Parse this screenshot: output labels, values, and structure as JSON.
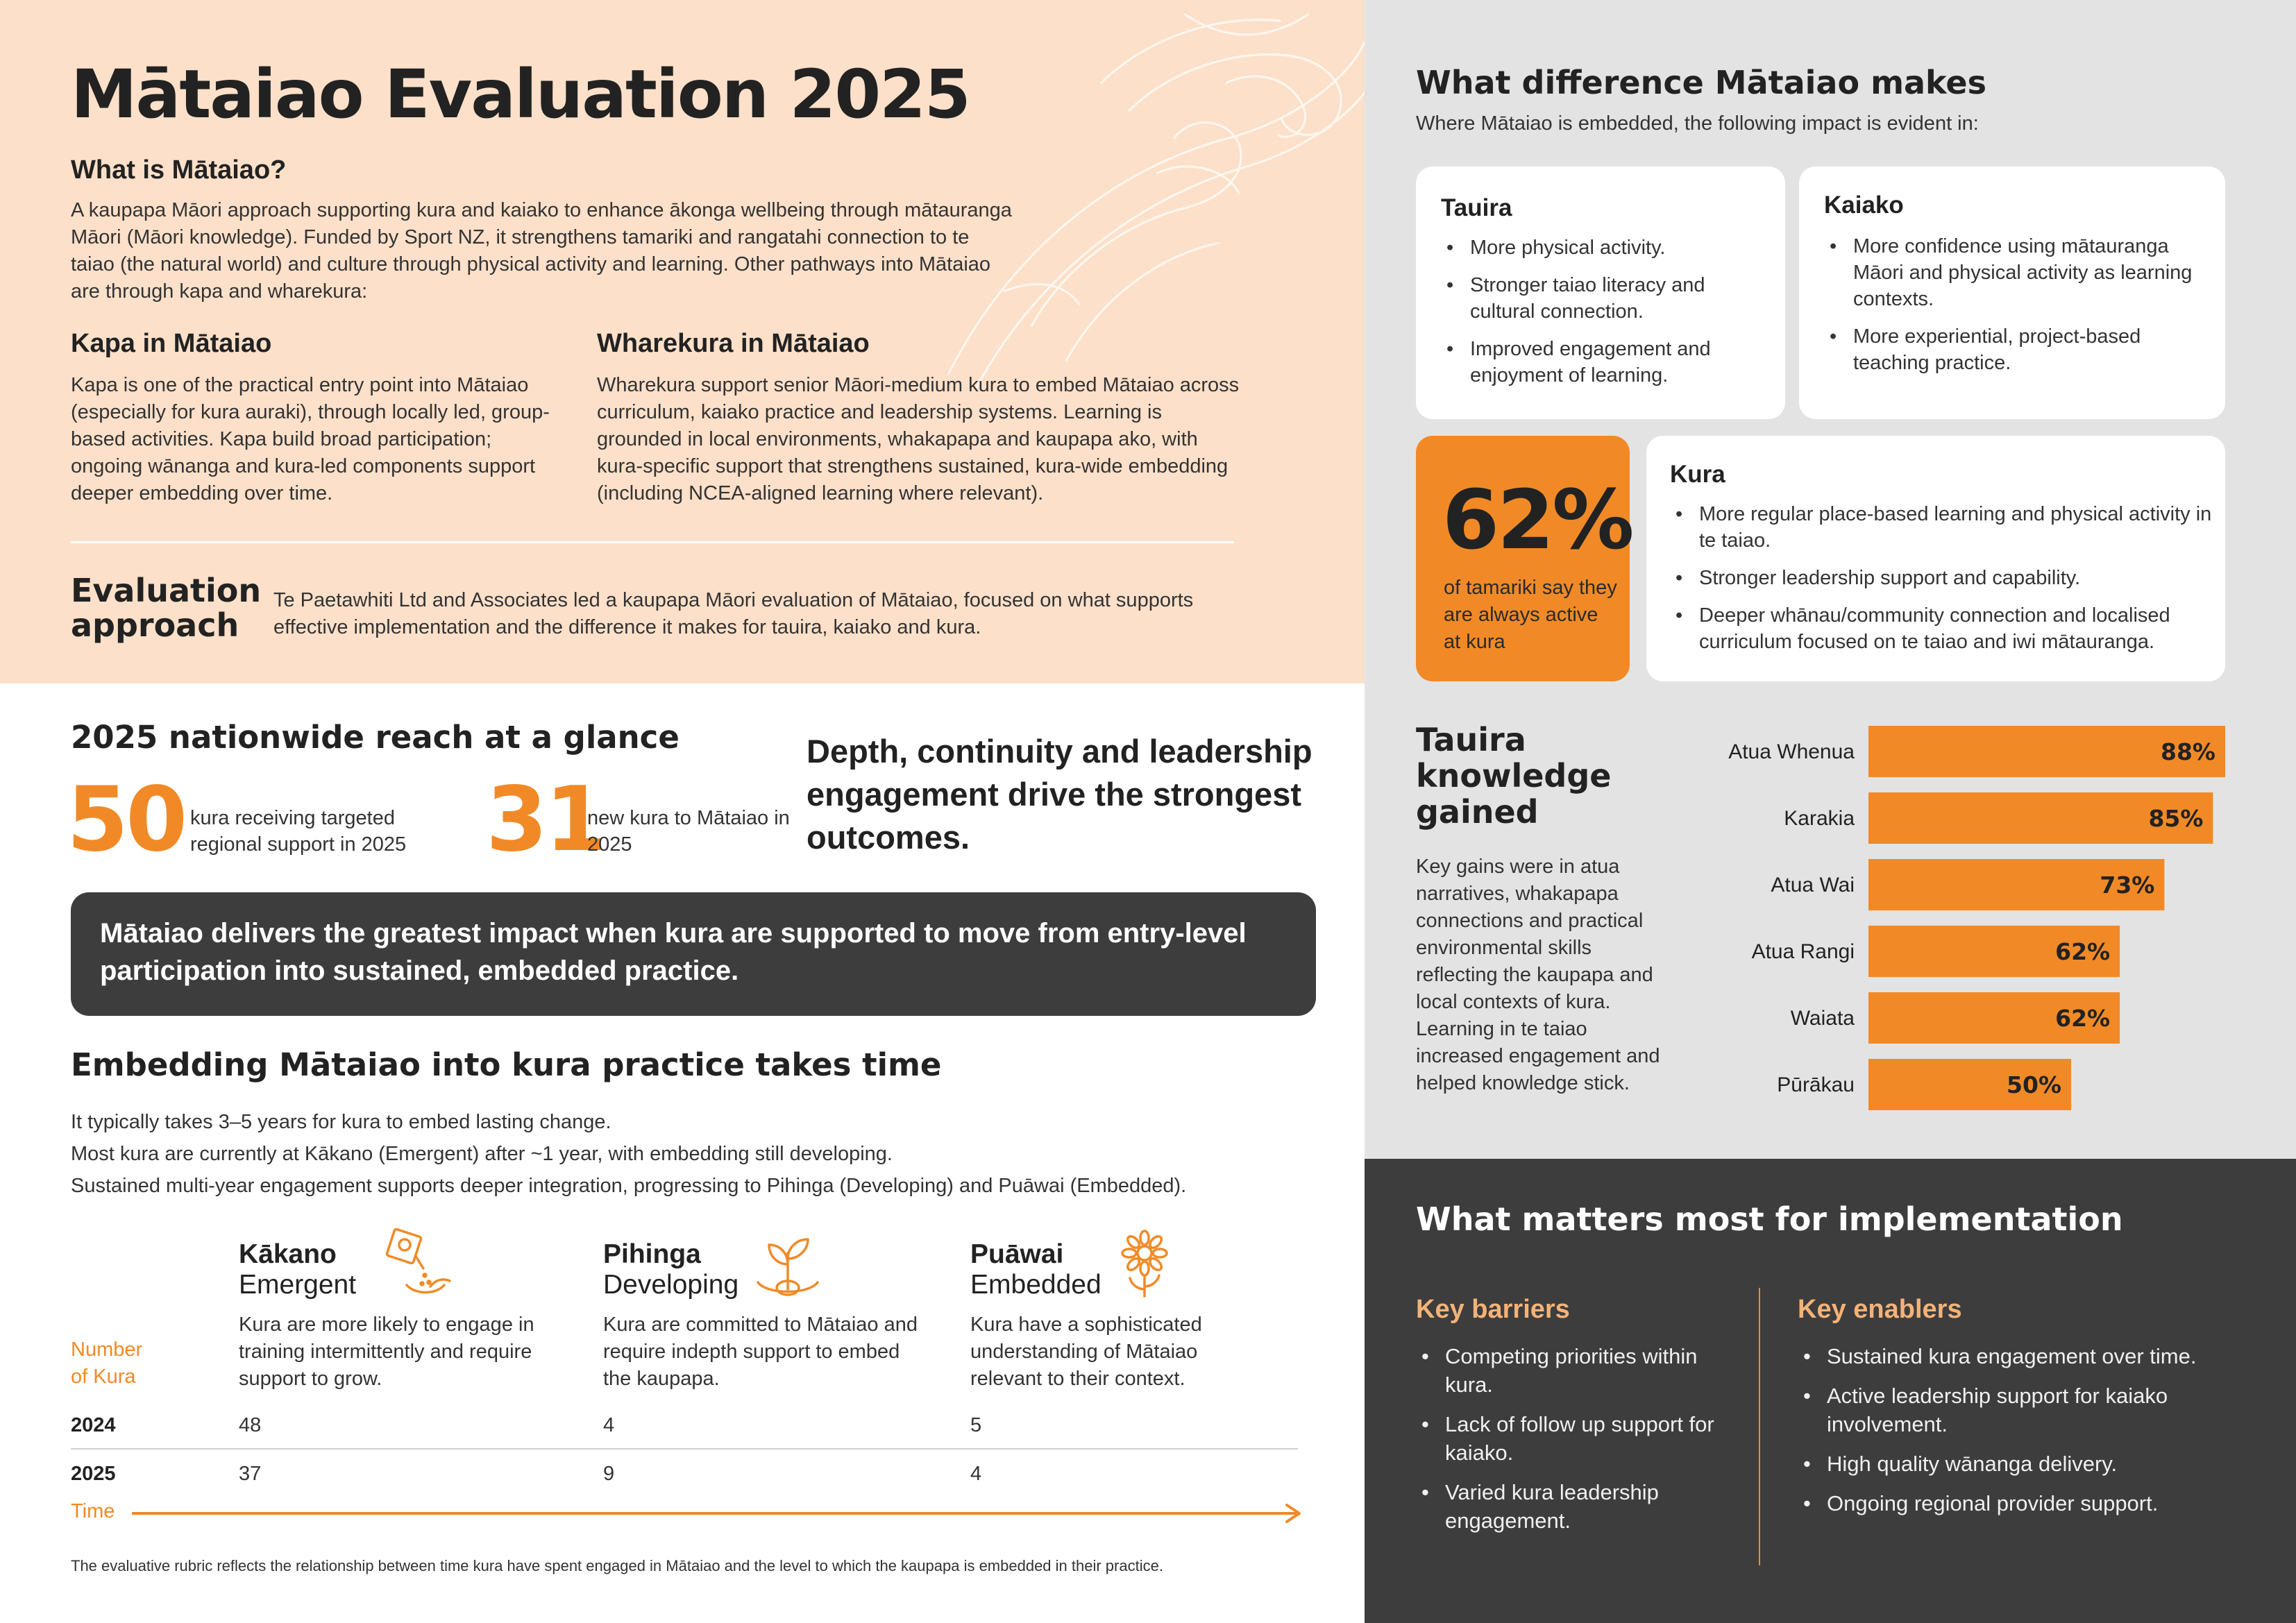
{
  "title": "Mātaiao Evaluation 2025",
  "what": {
    "heading": "What is Mātaiao?",
    "text": "A kaupapa Māori approach supporting kura and kaiako to enhance ākonga wellbeing through mātauranga Māori (Māori knowledge). Funded by Sport NZ, it strengthens tamariki and rangatahi connection to te taiao (the natural world) and culture through physical activity and learning. Other pathways into Mātaiao are through kapa and wharekura:"
  },
  "kapa": {
    "heading": "Kapa in Mātaiao",
    "text": "Kapa is one of the practical entry point into Mātaiao (especially for kura auraki), through locally led, group-based activities. Kapa build broad participation; ongoing wānanga and kura-led components support deeper embedding over time."
  },
  "wharekura": {
    "heading": "Wharekura in Mātaiao",
    "text": "Wharekura support senior Māori-medium kura to embed Mātaiao across curriculum, kaiako practice and leadership systems. Learning is grounded in local environments, whakapapa and kaupapa ako, with kura-specific support that strengthens sustained, kura-wide embedding (including NCEA-aligned learning where relevant)."
  },
  "evaluation": {
    "heading_line1": "Evaluation",
    "heading_line2": "approach",
    "text": "Te Paetawhiti Ltd and Associates led a kaupapa Māori evaluation of Mātaiao, focused on what supports effective implementation and the difference it makes for tauira, kaiako and kura."
  },
  "reach": {
    "heading": "2025 nationwide reach at a glance",
    "stat1_value": "50",
    "stat1_label": "kura receiving targeted regional support in 2025",
    "stat2_value": "31",
    "stat2_label": "new kura to Mātaiao in 2025",
    "depth": "Depth, continuity and leadership engagement drive the strongest outcomes."
  },
  "banner": "Mātaiao delivers the greatest impact when kura are supported to move from entry-level participation into sustained, embedded practice.",
  "embedding": {
    "heading": "Embedding Mātaiao into kura practice takes time",
    "line1": "It typically takes 3–5 years for kura to embed lasting change.",
    "line2": "Most kura are currently at Kākano (Emergent) after ~1 year, with embedding still developing.",
    "line3": "Sustained multi-year engagement supports deeper integration, progressing to Pihinga (Developing) and Puāwai (Embedded)."
  },
  "stages": [
    {
      "name": "Kākano",
      "sub": "Emergent",
      "desc": "Kura are more likely to engage in training intermittently and require support to grow.",
      "count_2024": "48",
      "count_2025": "37",
      "icon": "seed-packet-icon"
    },
    {
      "name": "Pihinga",
      "sub": "Developing",
      "desc": "Kura are committed to Mātaiao and require indepth support to embed the kaupapa.",
      "count_2024": "4",
      "count_2025": "9",
      "icon": "seedling-icon"
    },
    {
      "name": "Puāwai",
      "sub": "Embedded",
      "desc": "Kura have a sophisticated understanding of Mātaiao relevant to their context.",
      "count_2024": "5",
      "count_2025": "4",
      "icon": "flower-icon"
    }
  ],
  "table": {
    "number_label_1": "Number",
    "number_label_2": "of Kura",
    "year1": "2024",
    "year2": "2025",
    "time_label": "Time"
  },
  "footnote": "The evaluative rubric reflects the relationship between time kura have spent engaged in Mātaiao and the level to which the kaupapa is embedded in their practice.",
  "difference": {
    "heading": "What difference Mātaiao makes",
    "subtitle": "Where Mātaiao is embedded, the following impact is evident in:",
    "tauira": {
      "heading": "Tauira",
      "items": [
        "More physical activity.",
        "Stronger taiao literacy and cultural connection.",
        "Improved engagement and enjoyment of learning."
      ]
    },
    "kaiako": {
      "heading": "Kaiako",
      "items": [
        "More confidence using mātauranga Māori and physical activity as learning contexts.",
        "More experiential, project-based teaching practice."
      ]
    },
    "kura": {
      "heading": "Kura",
      "items": [
        "More regular place-based learning and physical activity in te taiao.",
        "Stronger leadership support and capability.",
        "Deeper whānau/community connection and localised curriculum focused on te taiao and iwi mātauranga."
      ]
    },
    "stat_value": "62%",
    "stat_label": "of tamariki say they are always active at kura"
  },
  "knowledge": {
    "heading_1": "Tauira",
    "heading_2": "knowledge",
    "heading_3": "gained",
    "text": "Key gains were in atua narratives, whakapapa connections and practical environmental skills reflecting the kaupapa and local contexts of kura. Learning in te taiao increased engagement and helped knowledge stick."
  },
  "chart_data": {
    "type": "bar",
    "orientation": "horizontal",
    "categories": [
      "Atua Whenua",
      "Karakia",
      "Atua Wai",
      "Atua Rangi",
      "Waiata",
      "Pūrākau"
    ],
    "values": [
      88,
      85,
      73,
      62,
      62,
      50
    ],
    "value_labels": [
      "88%",
      "85%",
      "73%",
      "62%",
      "62%",
      "50%"
    ],
    "xlim": [
      0,
      88
    ],
    "grid": false,
    "bar_color": "#f18a26"
  },
  "matters": {
    "heading": "What matters most for implementation",
    "barriers_heading": "Key barriers",
    "barriers": [
      "Competing priorities within kura.",
      "Lack of follow up support for kaiako.",
      "Varied kura leadership engagement."
    ],
    "enablers_heading": "Key enablers",
    "enablers": [
      "Sustained kura engagement over time.",
      "Active leadership support for kaiako involvement.",
      "High quality wānanga delivery.",
      "Ongoing regional provider support."
    ]
  },
  "colors": {
    "accent": "#f18a26",
    "peach": "#fde0c9",
    "grey": "#e3e3e3",
    "dark": "#3d3d3d"
  }
}
